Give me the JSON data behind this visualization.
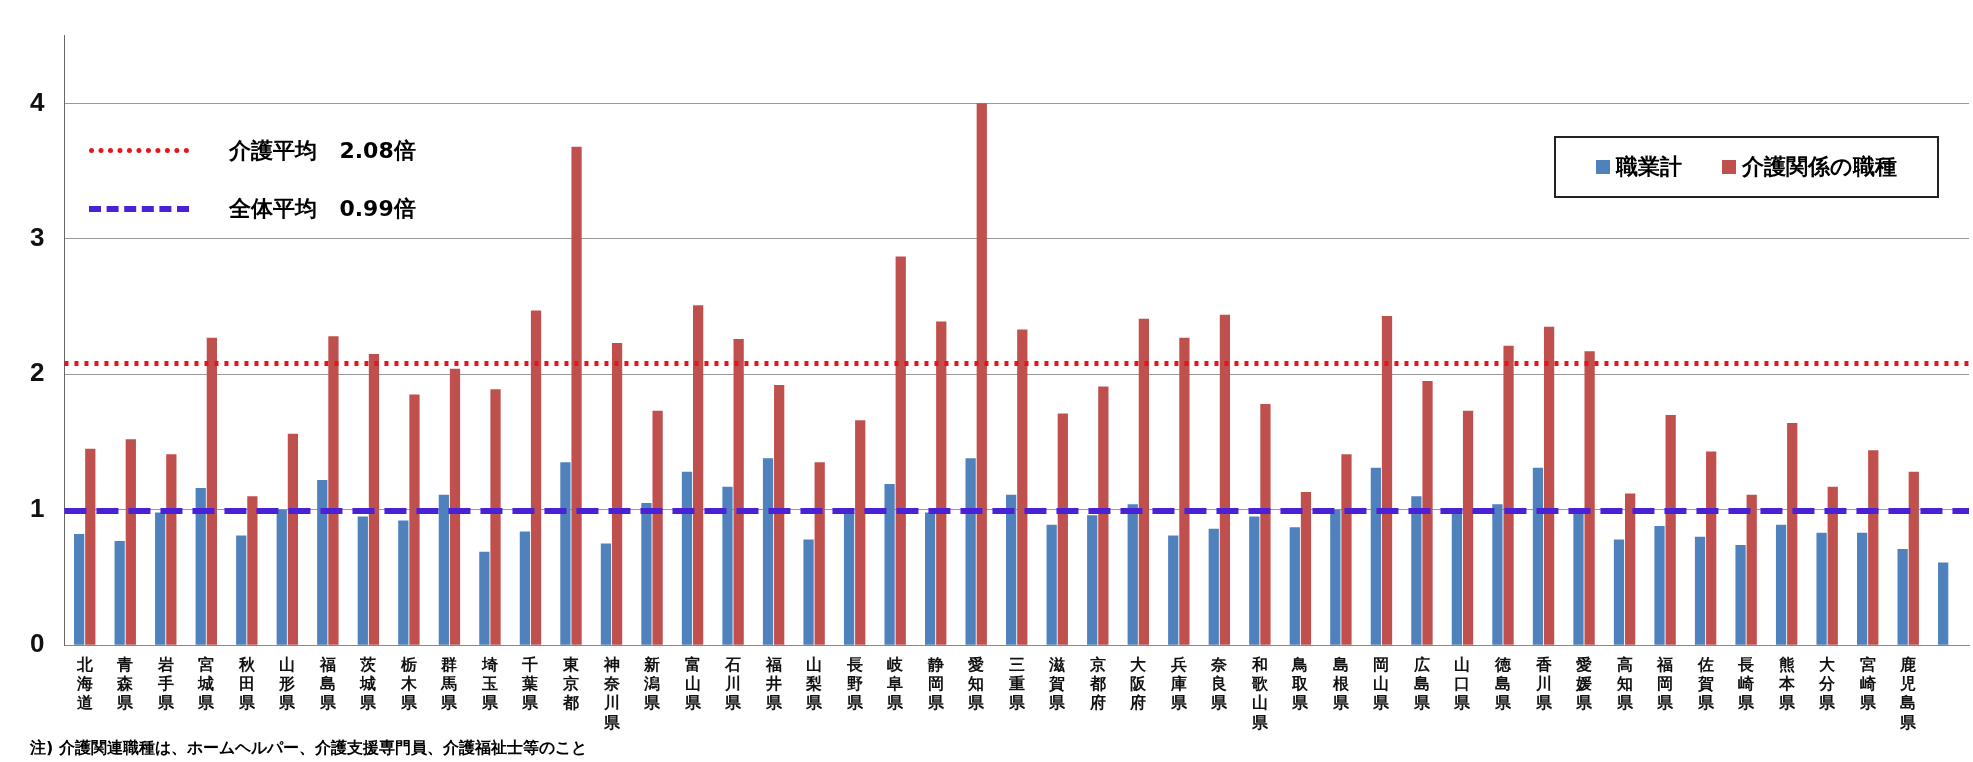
{
  "chart_data": {
    "type": "bar",
    "categories": [
      "北海道",
      "青森県",
      "岩手県",
      "宮城県",
      "秋田県",
      "山形県",
      "福島県",
      "茨城県",
      "栃木県",
      "群馬県",
      "埼玉県",
      "千葉県",
      "東京都",
      "神奈川県",
      "新潟県",
      "富山県",
      "石川県",
      "福井県",
      "山梨県",
      "長野県",
      "岐阜県",
      "静岡県",
      "愛知県",
      "三重県",
      "滋賀県",
      "京都府",
      "大阪府",
      "兵庫県",
      "奈良県",
      "和歌山県",
      "鳥取県",
      "島根県",
      "岡山県",
      "広島県",
      "山口県",
      "徳島県",
      "香川県",
      "愛媛県",
      "高知県",
      "福岡県",
      "佐賀県",
      "長崎県",
      "熊本県",
      "大分県",
      "宮崎県",
      "鹿児島県",
      null
    ],
    "series": [
      {
        "name": "職業計",
        "color": "#4f81bd",
        "values": [
          0.82,
          0.77,
          0.98,
          1.16,
          0.81,
          1.0,
          1.22,
          0.95,
          0.92,
          1.11,
          0.69,
          0.84,
          1.35,
          0.75,
          1.05,
          1.28,
          1.17,
          1.38,
          0.78,
          0.98,
          1.19,
          0.98,
          1.38,
          1.11,
          0.89,
          0.96,
          1.04,
          0.81,
          0.86,
          0.95,
          0.87,
          1.0,
          1.31,
          1.1,
          0.97,
          1.04,
          1.31,
          0.98,
          0.78,
          0.88,
          0.8,
          0.74,
          0.89,
          0.83,
          0.83,
          0.71,
          0.61
        ]
      },
      {
        "name": "介護関係の職種",
        "color": "#c0504d",
        "values": [
          1.45,
          1.52,
          1.41,
          2.27,
          1.1,
          1.56,
          2.28,
          2.15,
          1.85,
          2.04,
          1.89,
          2.47,
          3.68,
          2.23,
          1.73,
          2.51,
          2.26,
          1.92,
          1.35,
          1.66,
          2.87,
          2.39,
          4.0,
          2.33,
          1.71,
          1.91,
          2.41,
          2.27,
          2.44,
          1.78,
          1.13,
          1.41,
          2.43,
          1.95,
          1.73,
          2.21,
          2.35,
          2.17,
          1.12,
          1.7,
          1.43,
          1.11,
          1.64,
          1.17,
          1.44,
          1.28,
          null
        ]
      }
    ],
    "ylim": [
      0,
      4.5
    ],
    "yticks": [
      0,
      1,
      2,
      3,
      4
    ],
    "grid": "y",
    "legend": "top right",
    "ref_lines": [
      {
        "axis": "y",
        "value": 2.08,
        "label": "介護平均　2.08倍",
        "color": "#e8141c",
        "line_style": "dotted"
      },
      {
        "axis": "y",
        "value": 0.99,
        "label": "全体平均　0.99倍",
        "color": "#4a22d6",
        "line_style": "dashed"
      }
    ],
    "annotations": [
      "注) 介護関連職種は、ホームヘルパー、介護支援専門員、介護福祉士等のこと"
    ]
  }
}
